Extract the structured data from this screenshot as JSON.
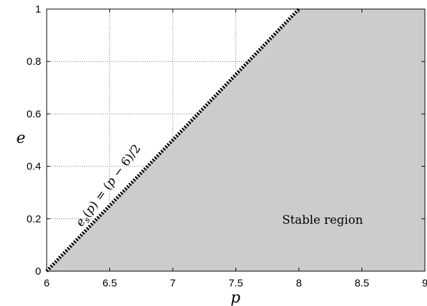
{
  "chart_data": {
    "type": "area",
    "title": "",
    "xlabel": "p",
    "ylabel": "e",
    "xlim": [
      6,
      9
    ],
    "ylim": [
      0,
      1
    ],
    "xticks": [
      6,
      6.5,
      7,
      7.5,
      8,
      8.5,
      9
    ],
    "xtick_labels": [
      "6",
      "6.5",
      "7",
      "7.5",
      "8",
      "8.5",
      "9"
    ],
    "yticks": [
      0,
      0.2,
      0.4,
      0.6,
      0.8,
      1
    ],
    "ytick_labels": [
      "0",
      "0.2",
      "0.4",
      "0.6",
      "0.8",
      "1"
    ],
    "grid": true,
    "series": [
      {
        "curve": "boundary",
        "style": "thick-dotted",
        "color": "#000000",
        "x": [
          6,
          8
        ],
        "y": [
          0,
          1
        ]
      }
    ],
    "shaded_region": {
      "fill": "#cccccc",
      "polygon_x": [
        6,
        9,
        9,
        8
      ],
      "polygon_y": [
        0,
        0,
        1,
        1
      ]
    },
    "annotations": [
      {
        "text": "e_s(p) = (p−6)/2",
        "anchor": "boundary-line"
      },
      {
        "text": "Stable region",
        "anchor": "shaded-region"
      }
    ]
  }
}
